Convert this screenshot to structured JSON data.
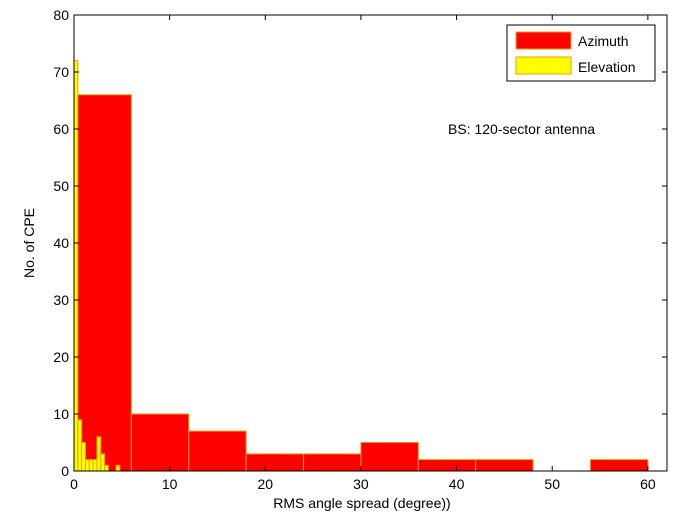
{
  "chart_data": {
    "type": "bar",
    "title": "",
    "xlabel": "RMS angle spread (degree))",
    "ylabel": "No. of CPE",
    "xlim": [
      0,
      62
    ],
    "ylim": [
      0,
      80
    ],
    "xticks": [
      0,
      10,
      20,
      30,
      40,
      50,
      60
    ],
    "yticks": [
      0,
      10,
      20,
      30,
      40,
      50,
      60,
      70,
      80
    ],
    "grid": false,
    "legend_position": "top-right",
    "annotation": "BS: 120-sector antenna",
    "series": [
      {
        "name": "Azimuth",
        "color": "#ff0000",
        "edge_color": "#e8a000",
        "bin_edges": [
          0,
          6,
          12,
          18,
          24,
          30,
          36,
          42,
          48,
          54,
          60
        ],
        "values": [
          66,
          10,
          7,
          3,
          3,
          5,
          2,
          2,
          0,
          2
        ]
      },
      {
        "name": "Elevation",
        "color": "#ffff00",
        "edge_color": "#e8a000",
        "bin_edges": [
          0,
          0.4,
          0.8,
          1.2,
          1.6,
          2.0,
          2.4,
          2.8,
          3.2,
          3.6,
          4.0,
          4.4,
          4.8,
          5.2
        ],
        "values": [
          72,
          9,
          5,
          2,
          2,
          2,
          6,
          3,
          1,
          0,
          0,
          1,
          0
        ]
      }
    ]
  }
}
